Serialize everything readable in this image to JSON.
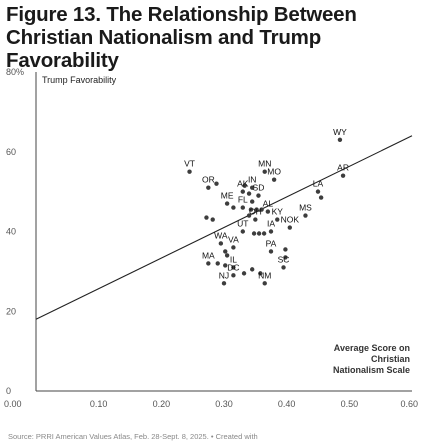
{
  "title": "Figure 13. The Relationship Between Christian Nationalism and Trump Favorability",
  "source": "Source: PRRI American Values Atlas, Feb. 28-Sept. 8, 2025. • Created with",
  "chart_data": {
    "type": "scatter",
    "title": "Figure 13. The Relationship Between Christian Nationalism and Trump Favorability",
    "series_label": "Trump Favorability",
    "xlabel": "Average Score on Christian Nationalism Scale",
    "xlabel_lines": [
      "Average Score on",
      "Christian",
      "Nationalism Scale"
    ],
    "ylabel": "",
    "xlim": [
      0.0,
      0.6
    ],
    "ylim": [
      0,
      80
    ],
    "x_ticks": [
      0.0,
      0.1,
      0.2,
      0.3,
      0.4,
      0.5,
      0.6
    ],
    "x_tick_labels": [
      "0.00",
      "0.10",
      "0.20",
      "0.30",
      "0.40",
      "0.50",
      "0.60"
    ],
    "y_ticks": [
      0,
      20,
      40,
      60,
      80
    ],
    "y_tick_labels": [
      "0",
      "20",
      "40",
      "60",
      "80%"
    ],
    "grid": false,
    "colors": {
      "points": "#3d3d3d",
      "trend": "#222222",
      "axis": "#444444"
    },
    "trend_line": {
      "x": [
        0.0,
        0.6
      ],
      "y": [
        18,
        64
      ]
    },
    "points": [
      {
        "label": "WY",
        "x": 0.485,
        "y": 63
      },
      {
        "label": "VT",
        "x": 0.245,
        "y": 55
      },
      {
        "label": "OR",
        "x": 0.275,
        "y": 51
      },
      {
        "label": "MN",
        "x": 0.365,
        "y": 55
      },
      {
        "label": "MO",
        "x": 0.38,
        "y": 53
      },
      {
        "label": "AR",
        "x": 0.49,
        "y": 54
      },
      {
        "label": "AK",
        "x": 0.33,
        "y": 50
      },
      {
        "label": "IN",
        "x": 0.345,
        "y": 51
      },
      {
        "label": "SD",
        "x": 0.355,
        "y": 49
      },
      {
        "label": "LA",
        "x": 0.45,
        "y": 50
      },
      {
        "label": "ME",
        "x": 0.305,
        "y": 47
      },
      {
        "label": "FL",
        "x": 0.33,
        "y": 46
      },
      {
        "label": "AL",
        "x": 0.37,
        "y": 45
      },
      {
        "label": "MS",
        "x": 0.43,
        "y": 44
      },
      {
        "label": "OH",
        "x": 0.35,
        "y": 43
      },
      {
        "label": "KY",
        "x": 0.385,
        "y": 43
      },
      {
        "label": "NOK",
        "x": 0.405,
        "y": 41
      },
      {
        "label": "UT",
        "x": 0.33,
        "y": 40
      },
      {
        "label": "IA",
        "x": 0.375,
        "y": 40
      },
      {
        "label": "WA",
        "x": 0.295,
        "y": 37
      },
      {
        "label": "VA",
        "x": 0.315,
        "y": 36
      },
      {
        "label": "PA",
        "x": 0.375,
        "y": 35
      },
      {
        "label": "MA",
        "x": 0.275,
        "y": 32
      },
      {
        "label": "IL",
        "x": 0.315,
        "y": 31
      },
      {
        "label": "SC",
        "x": 0.395,
        "y": 31
      },
      {
        "label": "DC",
        "x": 0.315,
        "y": 29
      },
      {
        "label": "NJ",
        "x": 0.3,
        "y": 27
      },
      {
        "label": "NM",
        "x": 0.365,
        "y": 27
      }
    ],
    "unlabeled_points": [
      {
        "x": 0.288,
        "y": 52
      },
      {
        "x": 0.333,
        "y": 51.5
      },
      {
        "x": 0.34,
        "y": 49.5
      },
      {
        "x": 0.345,
        "y": 47.5
      },
      {
        "x": 0.315,
        "y": 46
      },
      {
        "x": 0.343,
        "y": 45.5
      },
      {
        "x": 0.352,
        "y": 45.5
      },
      {
        "x": 0.36,
        "y": 45.5
      },
      {
        "x": 0.455,
        "y": 48.5
      },
      {
        "x": 0.272,
        "y": 43.5
      },
      {
        "x": 0.282,
        "y": 43
      },
      {
        "x": 0.34,
        "y": 44
      },
      {
        "x": 0.348,
        "y": 39.5
      },
      {
        "x": 0.356,
        "y": 39.5
      },
      {
        "x": 0.364,
        "y": 39.5
      },
      {
        "x": 0.302,
        "y": 35
      },
      {
        "x": 0.305,
        "y": 34
      },
      {
        "x": 0.398,
        "y": 33.5
      },
      {
        "x": 0.398,
        "y": 35.5
      },
      {
        "x": 0.29,
        "y": 32
      },
      {
        "x": 0.302,
        "y": 31.5
      },
      {
        "x": 0.345,
        "y": 30.5
      },
      {
        "x": 0.332,
        "y": 29.5
      },
      {
        "x": 0.358,
        "y": 29.5
      }
    ]
  }
}
